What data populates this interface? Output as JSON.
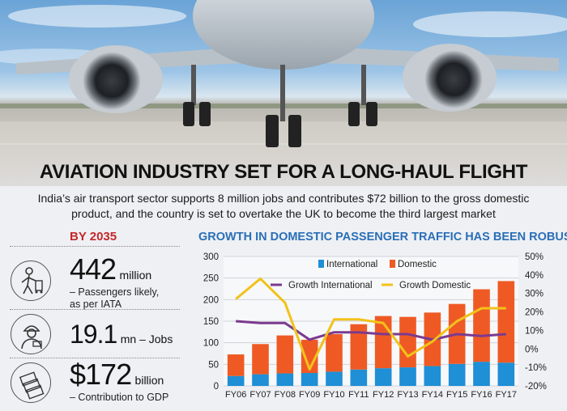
{
  "headline": "AVIATION INDUSTRY SET FOR A LONG-HAUL FLIGHT",
  "subheadline_line1": "India’s air transport sector supports 8 million jobs and contributes $72 billion to the gross domestic",
  "subheadline_line2": "product, and the country is set to overtake the UK to become the third largest market",
  "projection": {
    "heading": "BY 2035",
    "stats": [
      {
        "value": "442",
        "unit": "million",
        "desc1": "– Passengers likely,",
        "desc2": "as per IATA",
        "icon": "passenger-icon"
      },
      {
        "value": "19.1",
        "unit": "mn – Jobs",
        "icon": "worker-icon"
      },
      {
        "value": "$172",
        "unit": "billion",
        "desc1": "– Contribution to GDP",
        "icon": "money-icon"
      }
    ]
  },
  "colors": {
    "international": "#1f8fd6",
    "domestic": "#ef5a24",
    "growth_international": "#7b3a8f",
    "growth_domestic": "#f2c21a",
    "title": "#2a6fb7",
    "accent_red": "#c3272b"
  },
  "chart_data": {
    "type": "bar",
    "title": "GROWTH IN DOMESTIC PASSENGER TRAFFIC HAS BEEN ROBUST",
    "categories": [
      "FY06",
      "FY07",
      "FY08",
      "FY09",
      "FY10",
      "FY11",
      "FY12",
      "FY13",
      "FY14",
      "FY15",
      "FY16",
      "FY17"
    ],
    "stacked": true,
    "left_axis": {
      "min": 0,
      "max": 300,
      "ticks": [
        "0",
        "50",
        "100",
        "150",
        "200",
        "250",
        "300"
      ]
    },
    "right_axis": {
      "min": -20,
      "max": 50,
      "ticks": [
        "-20%",
        "-10%",
        "0%",
        "10%",
        "20%",
        "30%",
        "40%",
        "50%"
      ]
    },
    "series": [
      {
        "name": "International",
        "type": "bar",
        "axis": "left",
        "values": [
          23,
          27,
          29,
          30,
          33,
          38,
          41,
          43,
          46,
          51,
          56,
          54
        ]
      },
      {
        "name": "Domestic",
        "type": "bar",
        "axis": "left",
        "values": [
          50,
          70,
          88,
          77,
          87,
          105,
          121,
          117,
          124,
          139,
          168,
          189
        ]
      },
      {
        "name": "Growth International",
        "type": "line",
        "axis": "right",
        "values": [
          15,
          14,
          14,
          5,
          9,
          9,
          8,
          8,
          5,
          8,
          7,
          8
        ]
      },
      {
        "name": "Growth Domestic",
        "type": "line",
        "axis": "right",
        "values": [
          27,
          38,
          25,
          -11,
          16,
          16,
          14,
          -4,
          4,
          15,
          22,
          22
        ]
      }
    ],
    "legend": [
      "International",
      "Domestic",
      "Growth International",
      "Growth Domestic"
    ],
    "grid": "horizontal"
  }
}
